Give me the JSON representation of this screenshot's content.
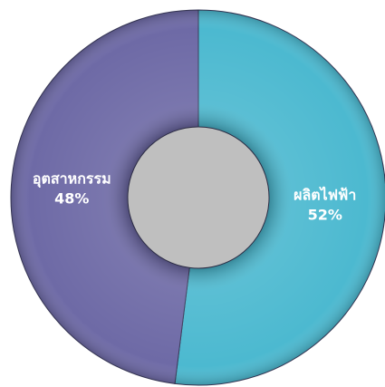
{
  "chart_data": {
    "type": "donut",
    "categories": [
      "ผลิตไฟฟ้า",
      "อุตสาหกรรม"
    ],
    "values": [
      52,
      48
    ],
    "value_labels": [
      "52%",
      "48%"
    ],
    "colors": [
      "#4cb9d0",
      "#6e6aa6"
    ]
  }
}
